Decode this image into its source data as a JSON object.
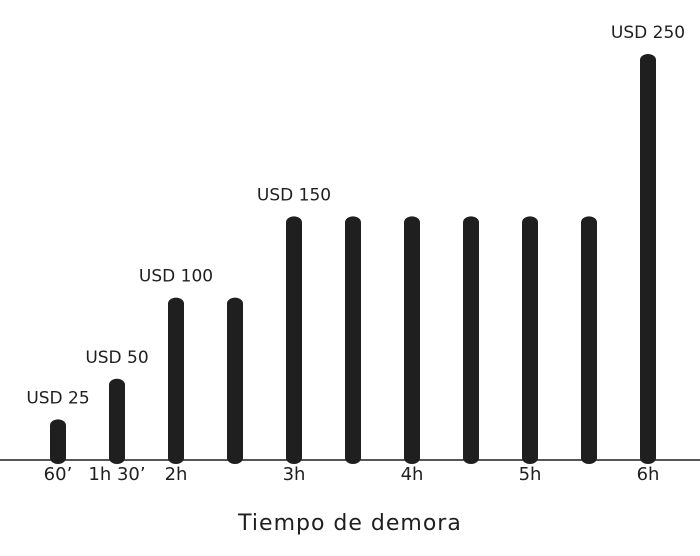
{
  "chart_data": {
    "type": "bar",
    "title": "",
    "xlabel": "Tiempo de demora",
    "ylabel": "",
    "grid": false,
    "legend": "none",
    "ylim": [
      0,
      250
    ],
    "bar_color": "#1f1f1f",
    "axis_color": "#1f1f1f",
    "x": [
      1,
      1.5,
      2,
      2.5,
      3,
      3.5,
      4,
      4.5,
      5,
      5.5,
      6
    ],
    "x_unit": "hours",
    "values": [
      25,
      50,
      100,
      100,
      150,
      150,
      150,
      150,
      150,
      150,
      250
    ],
    "value_labels": [
      {
        "index": 0,
        "text": "USD 25"
      },
      {
        "index": 1,
        "text": "USD 50"
      },
      {
        "index": 2,
        "text": "USD 100"
      },
      {
        "index": 4,
        "text": "USD 150"
      },
      {
        "index": 10,
        "text": "USD 250"
      }
    ],
    "ticks": [
      {
        "x": 1,
        "label": "60’"
      },
      {
        "x": 1.5,
        "label": "1h 30’"
      },
      {
        "x": 2,
        "label": "2h"
      },
      {
        "x": 3,
        "label": "3h"
      },
      {
        "x": 4,
        "label": "4h"
      },
      {
        "x": 5,
        "label": "5h"
      },
      {
        "x": 6,
        "label": "6h"
      }
    ]
  }
}
